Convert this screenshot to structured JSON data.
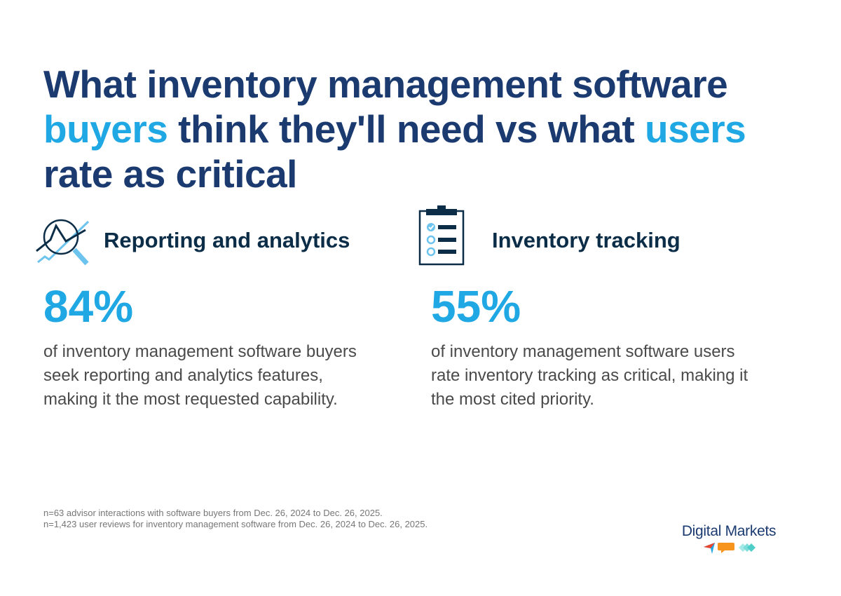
{
  "title": {
    "part1": "What inventory management software ",
    "highlight1": "buyers",
    "part2": " think they'll need vs what ",
    "highlight2": "users",
    "part3": " rate as critical"
  },
  "left": {
    "icon": "chart-magnifier-icon",
    "heading": "Reporting and analytics",
    "percent": "84%",
    "description": "of inventory management software buyers seek reporting and analytics features, making it the most requested capability."
  },
  "right": {
    "icon": "clipboard-checklist-icon",
    "heading": "Inventory tracking",
    "percent": "55%",
    "description": "of inventory management software users rate inventory tracking as critical, making it the most cited priority."
  },
  "footnotes": [
    "n=63 advisor interactions with software buyers from Dec. 26, 2024 to Dec. 26, 2025.",
    "n=1,423 user reviews for inventory management software from Dec. 26, 2024 to Dec. 26, 2025."
  ],
  "logo": {
    "text": "Digital Markets"
  },
  "colors": {
    "navy": "#1b3a70",
    "accent": "#1fa8e3",
    "heading": "#0c2d47",
    "orange": "#f7941d",
    "teal": "#5fd3d0"
  }
}
